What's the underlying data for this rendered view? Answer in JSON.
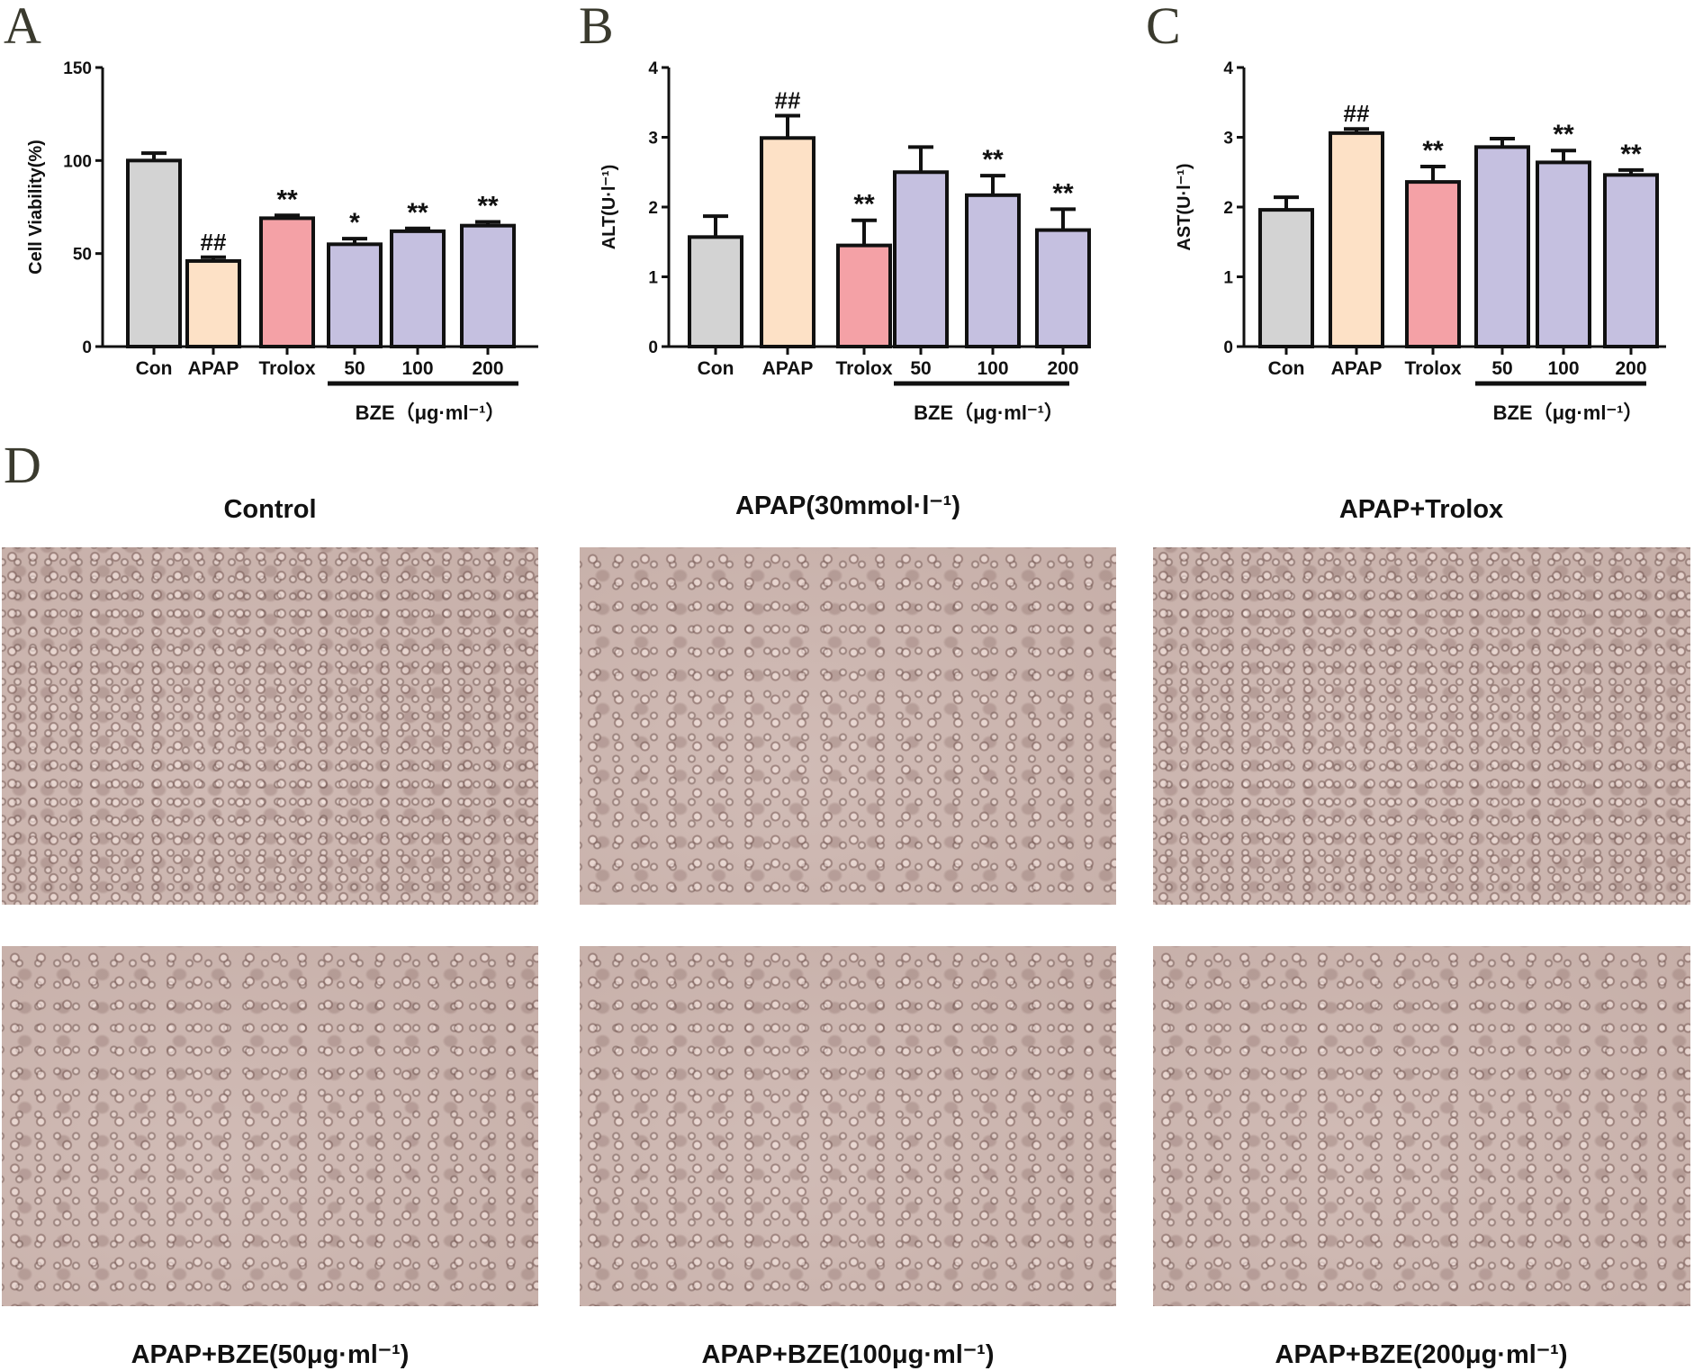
{
  "panel_labels": [
    "A",
    "B",
    "C",
    "D"
  ],
  "colors": {
    "con": "#d3d3d3",
    "apap": "#fde1c6",
    "trolox": "#f4a1a6",
    "bze": "#c5c0e0",
    "axis": "#111111"
  },
  "chart_data": [
    {
      "type": "bar",
      "panel": "A",
      "title": "",
      "ylabel": "Cell Viability(%)",
      "xlabel": "BZE（μg·ml⁻¹）",
      "ylim": [
        0,
        150
      ],
      "yticks": [
        0,
        50,
        100,
        150
      ],
      "categories": [
        "Con",
        "APAP",
        "Trolox",
        "50",
        "100",
        "200"
      ],
      "values": [
        100,
        46,
        69,
        55,
        62,
        65
      ],
      "errors": [
        4,
        2,
        1.5,
        3,
        1.5,
        2
      ],
      "annotations": [
        "",
        "##",
        "**",
        "*",
        "**",
        "**"
      ],
      "bar_colors": [
        "con",
        "apap",
        "trolox",
        "bze",
        "bze",
        "bze"
      ]
    },
    {
      "type": "bar",
      "panel": "B",
      "title": "",
      "ylabel": "ALT(U·l⁻¹)",
      "xlabel": "BZE（μg·ml⁻¹）",
      "ylim": [
        0,
        4
      ],
      "yticks": [
        0,
        1,
        2,
        3,
        4
      ],
      "categories": [
        "Con",
        "APAP",
        "Trolox",
        "50",
        "100",
        "200"
      ],
      "values": [
        1.57,
        2.99,
        1.45,
        2.5,
        2.17,
        1.67
      ],
      "errors": [
        0.3,
        0.32,
        0.36,
        0.36,
        0.28,
        0.3
      ],
      "annotations": [
        "",
        "##",
        "**",
        "",
        "**",
        "**"
      ],
      "bar_colors": [
        "con",
        "apap",
        "trolox",
        "bze",
        "bze",
        "bze"
      ]
    },
    {
      "type": "bar",
      "panel": "C",
      "title": "",
      "ylabel": "AST(U·l⁻¹)",
      "xlabel": "BZE（μg·ml⁻¹）",
      "ylim": [
        0,
        4
      ],
      "yticks": [
        0,
        1,
        2,
        3,
        4
      ],
      "categories": [
        "Con",
        "APAP",
        "Trolox",
        "50",
        "100",
        "200"
      ],
      "values": [
        1.96,
        3.06,
        2.36,
        2.86,
        2.64,
        2.46
      ],
      "errors": [
        0.18,
        0.06,
        0.22,
        0.12,
        0.17,
        0.07
      ],
      "annotations": [
        "",
        "##",
        "**",
        "",
        "**",
        "**"
      ],
      "bar_colors": [
        "con",
        "apap",
        "trolox",
        "bze",
        "bze",
        "bze"
      ]
    }
  ],
  "micrographs": {
    "top_titles": [
      "Control",
      "APAP(30mmol·l⁻¹)",
      "APAP+Trolox"
    ],
    "bottom_titles": [
      "APAP+BZE(50μg·ml⁻¹)",
      "APAP+BZE(100μg·ml⁻¹)",
      "APAP+BZE(200μg·ml⁻¹)"
    ]
  }
}
